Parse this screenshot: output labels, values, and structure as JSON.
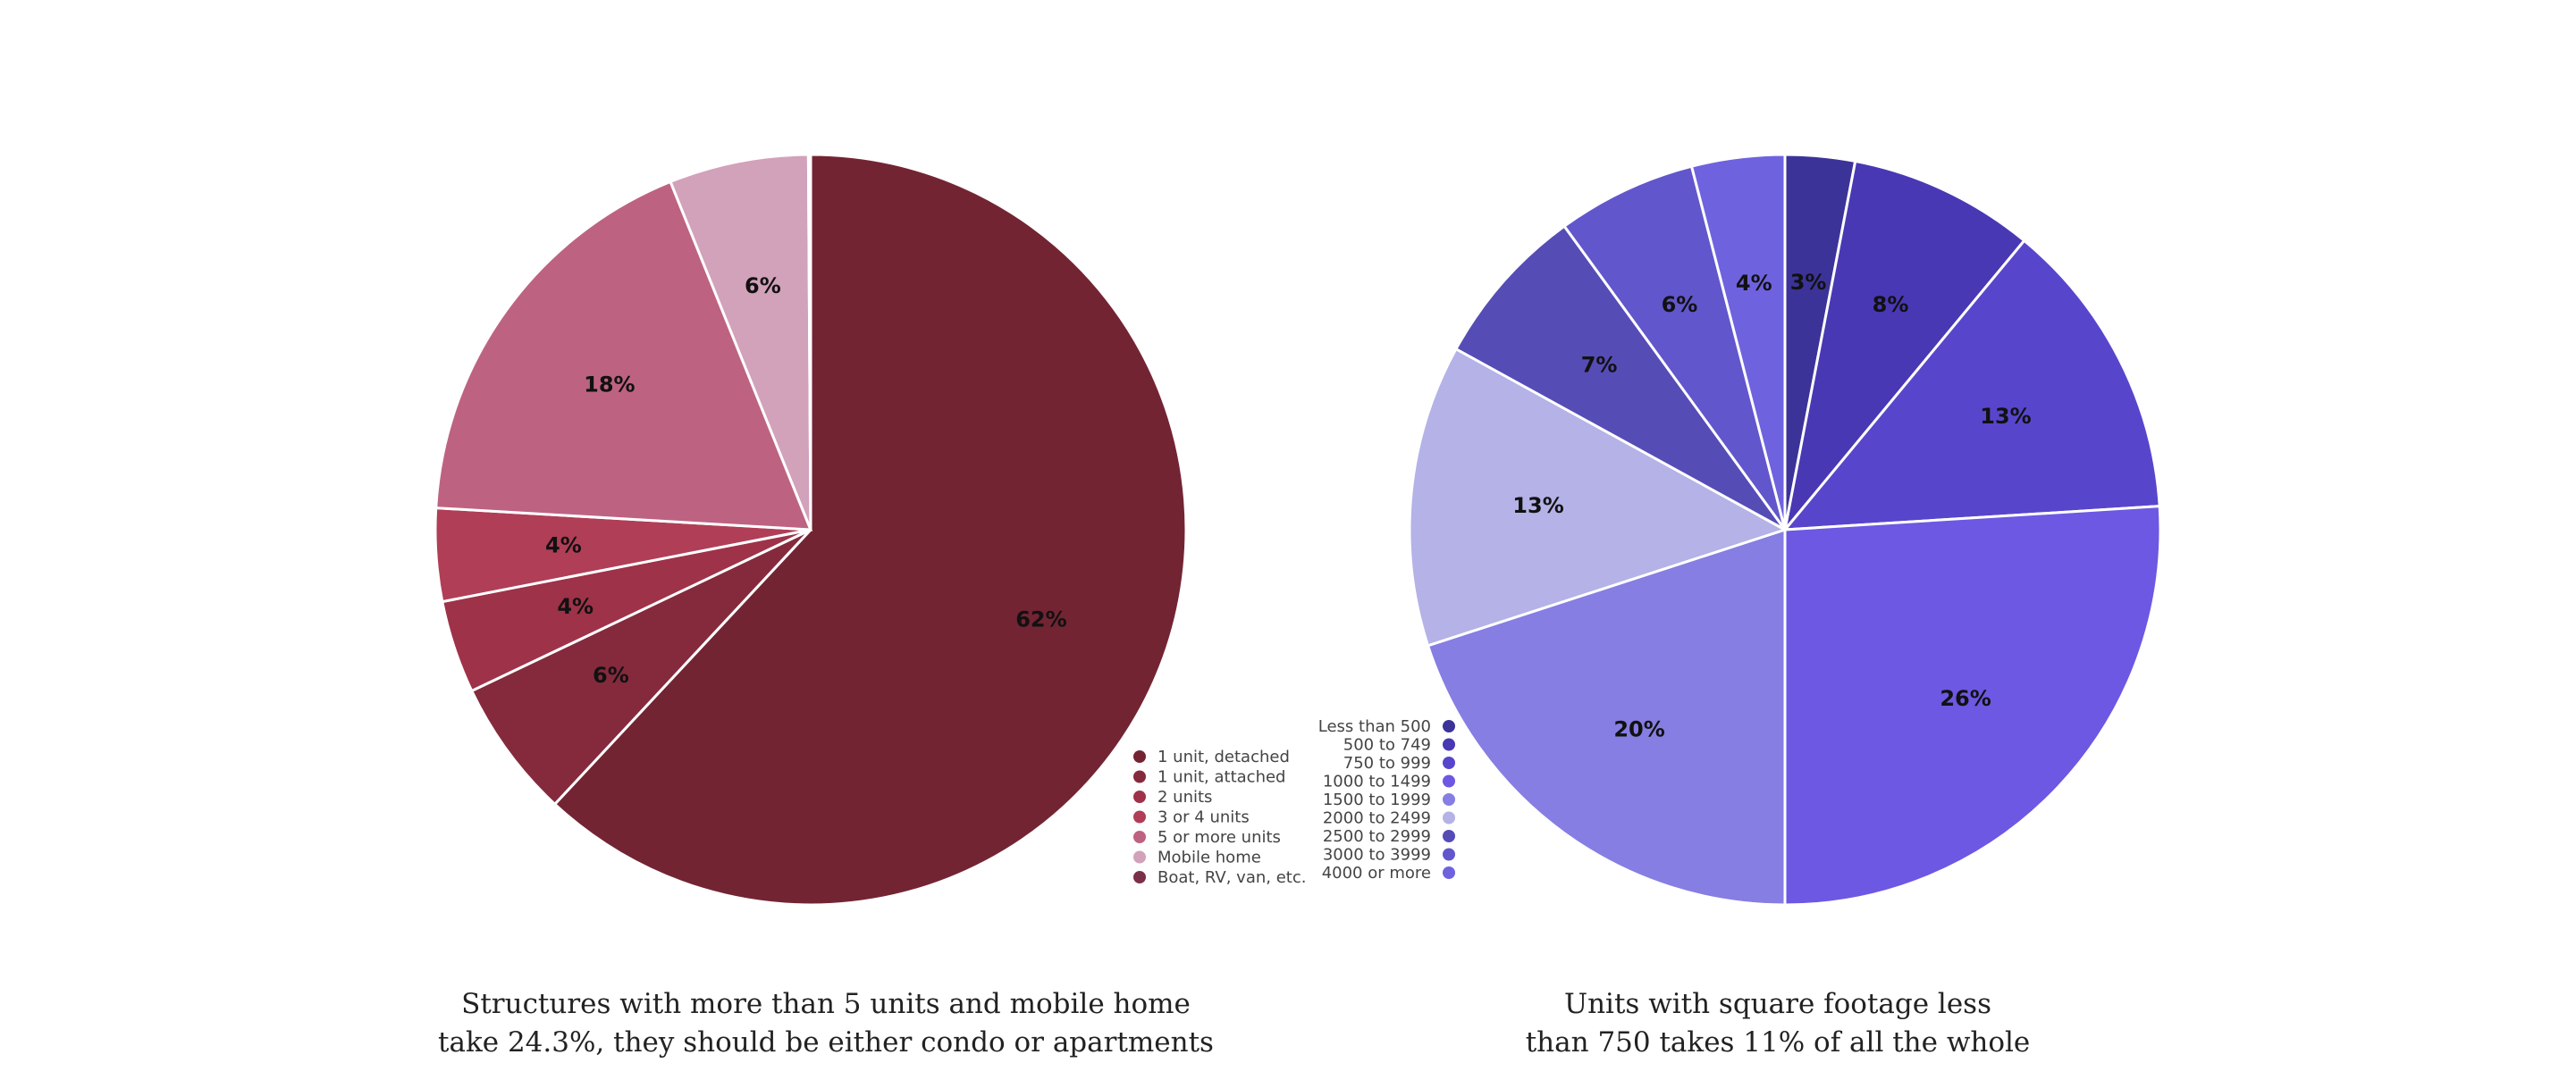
{
  "chart_data": [
    {
      "type": "pie",
      "title": "",
      "categories": [
        "1 unit, detached",
        "1 unit, attached",
        "2 units",
        "3 or 4 units",
        "5 or more units",
        "Mobile home",
        "Boat, RV, van, etc."
      ],
      "values": [
        62,
        6,
        4,
        4,
        18,
        6,
        0.1
      ],
      "data_labels": [
        "62%",
        "6%",
        "4%",
        "4%",
        "18%",
        "6%",
        ""
      ],
      "colors": [
        "#732433",
        "#852a3c",
        "#9e3249",
        "#b03e57",
        "#bd6381",
        "#d2a1ba",
        "#7a3048"
      ],
      "start": "12 o'clock",
      "direction": "clockwise",
      "legend": "bottom-right",
      "caption_lines": [
        "Structures with more than 5 units and mobile home",
        "take 24.3%, they should be either condo or apartments"
      ]
    },
    {
      "type": "pie",
      "title": "",
      "categories": [
        "Less than 500",
        "500 to 749",
        "750 to 999",
        "1000 to 1499",
        "1500 to 1999",
        "2000 to 2499",
        "2500 to 2999",
        "3000 to 3999",
        "4000 or more"
      ],
      "values": [
        3,
        8,
        13,
        26,
        20,
        13,
        7,
        6,
        4
      ],
      "data_labels": [
        "3%",
        "8%",
        "13%",
        "26%",
        "20%",
        "13%",
        "7%",
        "6%",
        "4%"
      ],
      "colors": [
        "#3c3399",
        "#4838b4",
        "#5746cc",
        "#6c58e3",
        "#867ee2",
        "#b4b2e6",
        "#564cb6",
        "#6256cc",
        "#6f62de"
      ],
      "start": "12 o'clock",
      "direction": "clockwise",
      "legend": "bottom-left",
      "caption_lines": [
        "Units with square footage less",
        "than 750 takes 11% of all the whole"
      ]
    }
  ]
}
